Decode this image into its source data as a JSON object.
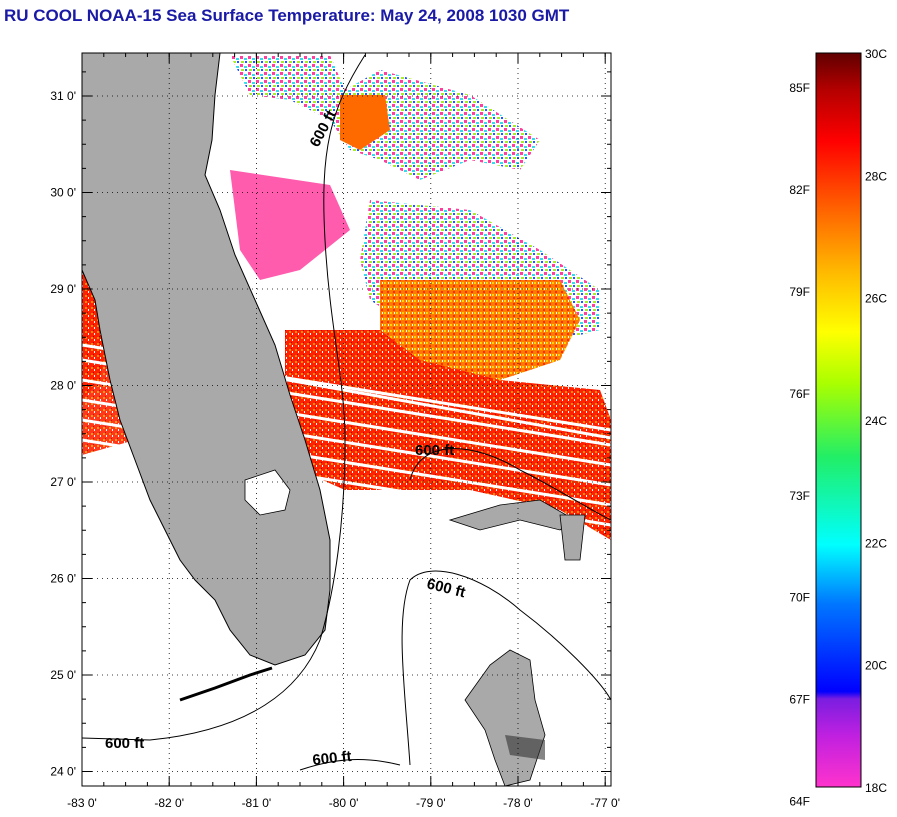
{
  "title": "RU COOL  NOAA-15  Sea Surface Temperature:  May 24, 2008 1030 GMT",
  "map": {
    "lat_labels": [
      "31 0'",
      "30 0'",
      "29 0'",
      "28 0'",
      "27 0'",
      "26 0'",
      "25 0'",
      "24 0'"
    ],
    "lat_values": [
      31,
      30,
      29,
      28,
      27,
      26,
      25,
      24
    ],
    "lon_labels": [
      "-83 0'",
      "-82 0'",
      "-81 0'",
      "-80 0'",
      "-79 0'",
      "-78 0'",
      "-77 0'"
    ],
    "lon_values": [
      -83,
      -82,
      -81,
      -80,
      -79,
      -78,
      -77
    ],
    "contour_label": "600 ft",
    "land_color": "#a9a9a9",
    "grid": "dotted"
  },
  "colorbar": {
    "fahrenheit_labels": [
      "85F",
      "82F",
      "79F",
      "76F",
      "73F",
      "70F",
      "67F",
      "64F"
    ],
    "celsius_labels": [
      "30C",
      "28C",
      "26C",
      "24C",
      "22C",
      "20C",
      "18C"
    ],
    "range_c": [
      18,
      30
    ],
    "colors": [
      "#ff33cc",
      "#8a1ee0",
      "#0000ff",
      "#0088ff",
      "#00ffff",
      "#00ee66",
      "#aaff00",
      "#ffff00",
      "#ffa500",
      "#ff5a00",
      "#ff0000",
      "#b40000",
      "#6a0000"
    ]
  }
}
